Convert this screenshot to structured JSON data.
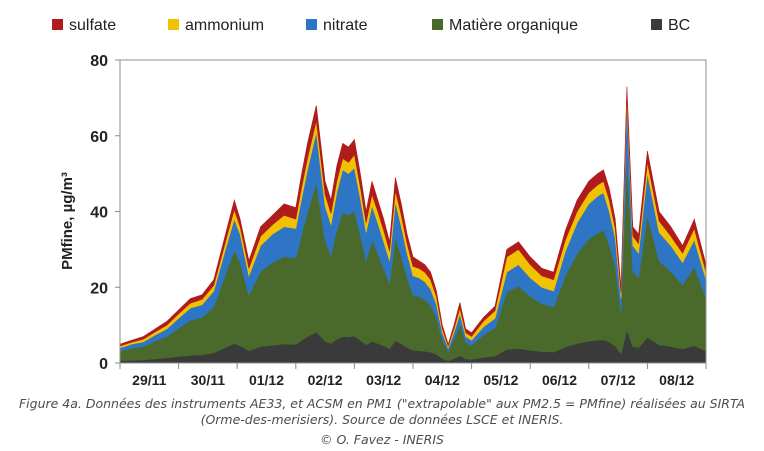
{
  "chart_data": {
    "type": "area",
    "stacked": true,
    "ylabel": "PMfine, µg/m³",
    "ylim": [
      0,
      80
    ],
    "yticks": [
      0,
      20,
      40,
      60,
      80
    ],
    "xlabel": "",
    "x_tick_labels": [
      "29/11",
      "30/11",
      "01/12",
      "02/12",
      "03/12",
      "04/12",
      "05/12",
      "06/12",
      "07/12",
      "08/12"
    ],
    "xlim_days": [
      0,
      10
    ],
    "grid": false,
    "legend_position": "top",
    "x_unit_note": "days after 28/11 00:00",
    "series": [
      {
        "name": "BC",
        "color": "#3a3a3a"
      },
      {
        "name": "Matière organique",
        "color": "#4a6a2c"
      },
      {
        "name": "nitrate",
        "color": "#2e75c6"
      },
      {
        "name": "ammonium",
        "color": "#f2c200"
      },
      {
        "name": "sulfate",
        "color": "#b01c1c"
      }
    ],
    "legend_order": [
      "sulfate",
      "ammonium",
      "nitrate",
      "Matière organique",
      "BC"
    ],
    "x": [
      0.0,
      0.2,
      0.4,
      0.6,
      0.8,
      1.0,
      1.2,
      1.4,
      1.6,
      1.8,
      1.95,
      2.05,
      2.2,
      2.4,
      2.6,
      2.8,
      3.0,
      3.1,
      3.2,
      3.35,
      3.5,
      3.6,
      3.7,
      3.8,
      3.9,
      4.0,
      4.1,
      4.2,
      4.3,
      4.4,
      4.5,
      4.6,
      4.7,
      4.8,
      4.9,
      5.0,
      5.1,
      5.2,
      5.3,
      5.4,
      5.5,
      5.6,
      5.7,
      5.8,
      5.9,
      6.0,
      6.2,
      6.4,
      6.6,
      6.8,
      7.0,
      7.2,
      7.4,
      7.6,
      7.8,
      8.0,
      8.15,
      8.25,
      8.35,
      8.45,
      8.55,
      8.65,
      8.75,
      8.85,
      9.0,
      9.2,
      9.4,
      9.6,
      9.8,
      10.0
    ],
    "totals": [
      5,
      6,
      7,
      9,
      11,
      14,
      17,
      18,
      22,
      34,
      43,
      38,
      27,
      36,
      39,
      42,
      41,
      50,
      58,
      68,
      48,
      43,
      52,
      58,
      57,
      59,
      50,
      40,
      48,
      43,
      38,
      32,
      49,
      42,
      34,
      28,
      27,
      26,
      24,
      19,
      10,
      5,
      10,
      16,
      9,
      8,
      12,
      15,
      30,
      32,
      28,
      25,
      24,
      35,
      43,
      48,
      50,
      51,
      46,
      38,
      20,
      73,
      36,
      34,
      56,
      40,
      36,
      31,
      38,
      26
    ],
    "series_values": {
      "sulfate": [
        0.5,
        0.5,
        0.7,
        0.8,
        1,
        1,
        1.2,
        1.2,
        1.5,
        2,
        2.5,
        2,
        2,
        2.5,
        2.5,
        3,
        3,
        3.5,
        4,
        4,
        3.5,
        3.5,
        4,
        4,
        4,
        4,
        3.5,
        3,
        3.5,
        3,
        3,
        2.5,
        3.5,
        3,
        2.5,
        2.5,
        2,
        2,
        2,
        1.5,
        1,
        0.5,
        1,
        1.5,
        1,
        1,
        1,
        1.2,
        2,
        2,
        2,
        2,
        2,
        2.5,
        3,
        3,
        3,
        3,
        3,
        2.5,
        1.5,
        2,
        2.5,
        2.5,
        3,
        2.5,
        2.5,
        2,
        2.5,
        2
      ],
      "ammonium": [
        0.5,
        0.5,
        0.7,
        0.8,
        1,
        1.2,
        1.3,
        1.4,
        1.5,
        2,
        2.5,
        2,
        2,
        2.5,
        2.5,
        3,
        2.5,
        3,
        3,
        3,
        3,
        3,
        3,
        3,
        3,
        3.5,
        3,
        2.5,
        3,
        3,
        3,
        2.5,
        3,
        3,
        2.5,
        2.5,
        2.5,
        2.5,
        2.5,
        2,
        1,
        0.5,
        1,
        1.5,
        1,
        1,
        1.5,
        2,
        4,
        4,
        3.5,
        3,
        3,
        3,
        3,
        3,
        3,
        3,
        3,
        2.5,
        1.5,
        2,
        2.5,
        2.5,
        3,
        3,
        2.5,
        2.5,
        3,
        2
      ]
    }
  },
  "caption": {
    "line1": "Figure 4a. Données des instruments AE33, et ACSM en PM1 (\"extrapolable\" aux PM2.5 = PMfine) réalisées au SIRTA",
    "line2": "(Orme-des-merisiers). Source de données LSCE et INERIS.",
    "credit": "© O. Favez - INERIS"
  }
}
